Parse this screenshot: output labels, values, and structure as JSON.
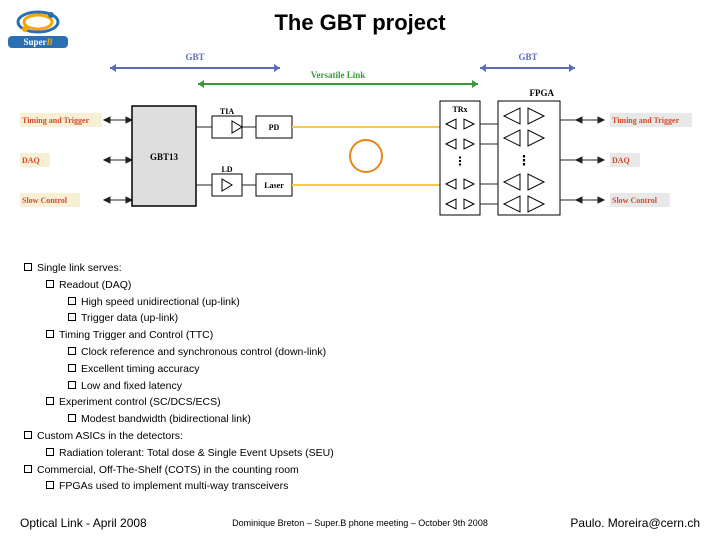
{
  "title": "The GBT project",
  "logo": {
    "top_text": "Super",
    "bottom_text": "B",
    "ring_colors": [
      "#f7a600",
      "#2a6fb3"
    ]
  },
  "footer": {
    "left": "Optical Link - April 2008",
    "mid": "Dominique Breton – Super.B phone meeting – October 9th 2008",
    "right": "Paulo. Moreira@cern.ch"
  },
  "diagram": {
    "left_labels": [
      "Timing and Trigger",
      "DAQ",
      "Slow Control"
    ],
    "right_labels": [
      "Timing and Trigger",
      "DAQ",
      "Slow Control"
    ],
    "label_color": "#d64a2e",
    "left_label_bg": "#f7f0d4",
    "right_label_bg": "#e8e8e8",
    "top_labels": {
      "gbt": "GBT",
      "versatile": "Versatile Link"
    },
    "top_label_colors": {
      "gbt": "#5b6bb8",
      "versatile": "#3a9a3a"
    },
    "boxes": {
      "gbt13": "GBT13",
      "tia": "TIA",
      "ld": "LD",
      "pd": "PD",
      "laser": "Laser",
      "trx": "TRx",
      "fpga": "FPGA"
    },
    "colors": {
      "box_border": "#000000",
      "box_fill": "#ffffff",
      "gbt_box_fill": "#dedede",
      "wire": "#222222",
      "blue_line": "#5b6bb8",
      "green_line": "#3a9a3a",
      "fiber_yellow": "#f7c84a",
      "ring": "#e8861a"
    },
    "font_sizes": {
      "top_label": 9,
      "box_label": 9,
      "side_label": 8
    }
  },
  "bullets": [
    {
      "level": 0,
      "text": "Single link serves:"
    },
    {
      "level": 1,
      "text": "Readout (DAQ)"
    },
    {
      "level": 2,
      "text": "High speed unidirectional (up-link)"
    },
    {
      "level": 2,
      "text": "Trigger data (up-link)"
    },
    {
      "level": 1,
      "text": "Timing Trigger and Control (TTC)"
    },
    {
      "level": 2,
      "text": "Clock reference and synchronous control (down-link)"
    },
    {
      "level": 2,
      "text": "Excellent timing accuracy"
    },
    {
      "level": 2,
      "text": "Low and fixed latency"
    },
    {
      "level": 1,
      "text": "Experiment control (SC/DCS/ECS)"
    },
    {
      "level": 2,
      "text": "Modest bandwidth (bidirectional link)"
    },
    {
      "level": 0,
      "text": "Custom ASICs in the detectors:"
    },
    {
      "level": 1,
      "text": "Radiation tolerant: Total dose & Single Event Upsets (SEU)"
    },
    {
      "level": 0,
      "text": "Commercial, Off-The-Shelf (COTS) in the counting room"
    },
    {
      "level": 1,
      "text": "FPGAs used to implement multi-way transceivers"
    }
  ]
}
